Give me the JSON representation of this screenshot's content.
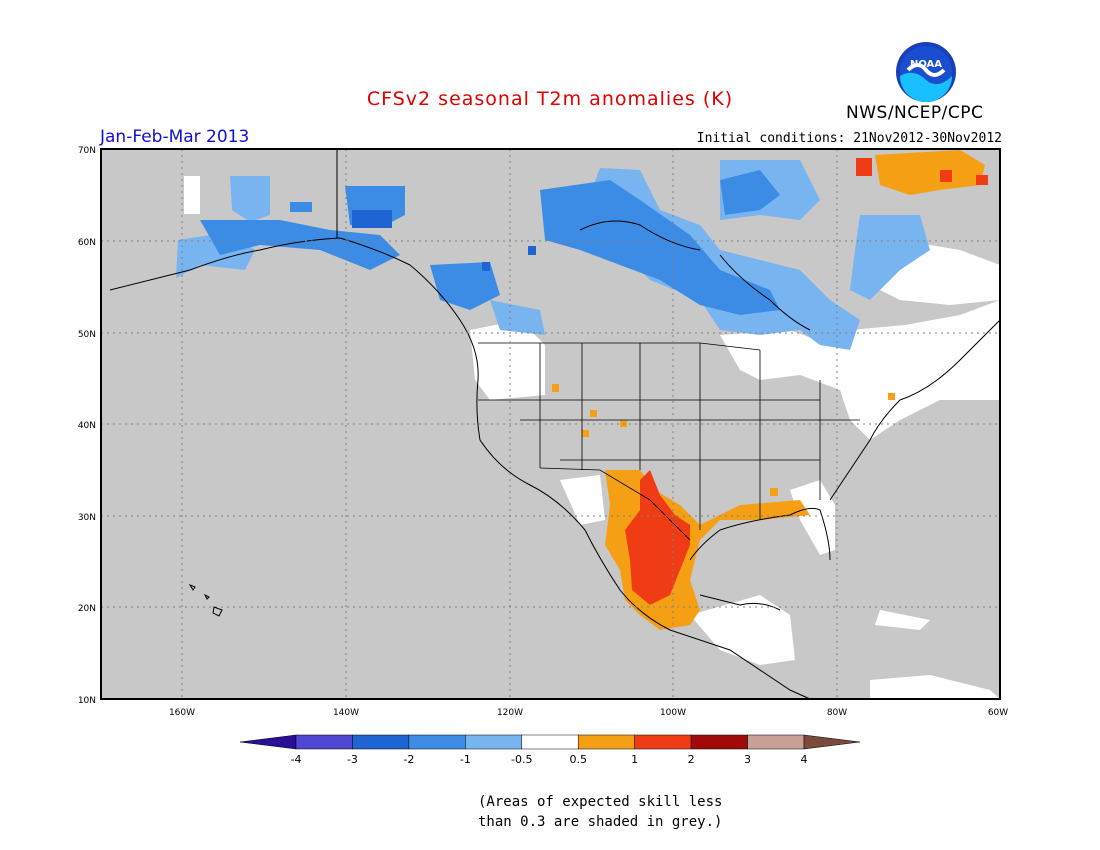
{
  "header": {
    "title": "CFSv2 seasonal T2m anomalies (K)",
    "period": "Jan-Feb-Mar 2013",
    "initial_conditions": "Initial conditions: 21Nov2012-30Nov2012",
    "agency": "NWS/NCEP/CPC",
    "logo_text": "NOAA"
  },
  "map": {
    "region": "North America",
    "lon_range": [
      -172,
      -60
    ],
    "lat_range": [
      10,
      70
    ],
    "lat_labels": [
      "70N",
      "60N",
      "50N",
      "40N",
      "30N",
      "20N",
      "10N"
    ],
    "lon_labels": [
      "160W",
      "140W",
      "120W",
      "100W",
      "80W",
      "60W"
    ],
    "background_color": "#c8c8c8",
    "anomaly_regions": [
      {
        "name": "Alaska cool",
        "category": "-1 to -0.5",
        "color": "#78b4f0"
      },
      {
        "name": "Canada cool",
        "category": "-2 to -1",
        "color": "#3c8ce6"
      },
      {
        "name": "Texas/Mexico warm",
        "category": "1 to 2",
        "color": "#f03c14"
      },
      {
        "name": "Gulf coast warm",
        "category": "0.5 to 1",
        "color": "#f5a014"
      },
      {
        "name": "Greenland warm",
        "category": "1 to 2",
        "color": "#f03c14"
      },
      {
        "name": "Northeast neutral",
        "category": "-0.5 to 0.5",
        "color": "#ffffff"
      }
    ]
  },
  "colorbar": {
    "tick_labels": [
      "-4",
      "-3",
      "-2",
      "-1",
      "-0.5",
      "0.5",
      "1",
      "2",
      "3",
      "4"
    ],
    "colors": [
      "#2a0f96",
      "#5046d2",
      "#1e64d2",
      "#3c8ce6",
      "#78b4f0",
      "#ffffff",
      "#f5a014",
      "#f03c14",
      "#a00a0a",
      "#c8a096",
      "#7a4a3a"
    ]
  },
  "note": {
    "line1": "(Areas of expected skill less",
    "line2": "than 0.3 are shaded in grey.)"
  }
}
